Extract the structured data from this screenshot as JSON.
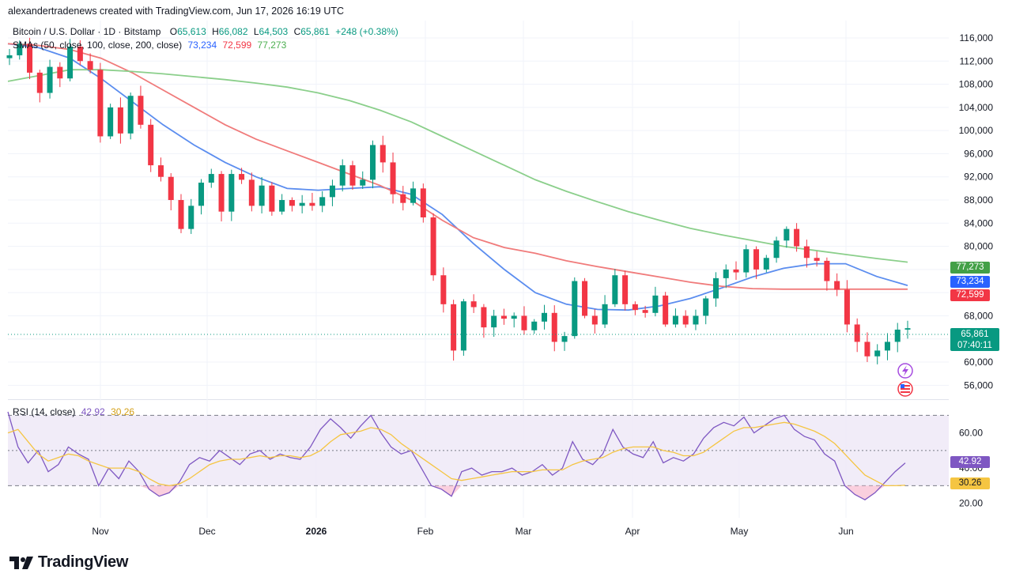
{
  "header": {
    "text": "alexandertradenews created with TradingView.com, Jun 17, 2026 16:19 UTC"
  },
  "legend": {
    "symbol": "Bitcoin / U.S. Dollar · 1D · Bitstamp",
    "ohlc": {
      "o_label": "O",
      "o": "65,613",
      "h_label": "H",
      "h": "66,082",
      "l_label": "L",
      "l": "64,503",
      "c_label": "C",
      "c": "65,861",
      "change": "+248 (+0.38%)"
    },
    "sma_label": "SMAs (50, close, 100, close, 200, close)",
    "sma50": "73,234",
    "sma100": "72,599",
    "sma200": "77,273",
    "rsi_label": "RSI (14, close)",
    "rsi": "42.92",
    "rsi_ma": "30.26"
  },
  "price_tags": {
    "sma200": "77,273",
    "sma50": "73,234",
    "sma100": "72,599",
    "close": "65,861",
    "countdown": "07:40:11",
    "rsi": "42.92",
    "rsi_ma": "30.26"
  },
  "footer": {
    "brand": "TradingView"
  },
  "colors": {
    "up": "#089981",
    "down": "#f23645",
    "sma50": "#5b8def",
    "sma100": "#f07b7b",
    "sma200": "#8bcf8b",
    "rsi": "#7e57c2",
    "rsi_ma": "#f5c542"
  },
  "chart_data": [
    {
      "type": "candlestick",
      "title": "Bitcoin / U.S. Dollar · 1D · Bitstamp",
      "x_ticks": [
        "Nov",
        "Dec",
        "2026",
        "Feb",
        "Mar",
        "Apr",
        "May",
        "Jun"
      ],
      "y_ticks": [
        56000,
        60000,
        64000,
        68000,
        72000,
        76000,
        80000,
        84000,
        88000,
        92000,
        96000,
        100000,
        104000,
        108000,
        112000,
        116000
      ],
      "y_tick_labels": [
        "56,000",
        "60,000",
        "",
        "68,000",
        "",
        "",
        "80,000",
        "84,000",
        "88,000",
        "92,000",
        "96,000",
        "100,000",
        "104,000",
        "108,000",
        "112,000",
        "116,000"
      ],
      "ylim": [
        54000,
        119000
      ],
      "grid": true,
      "close_path": [
        113000,
        115000,
        110000,
        106500,
        111000,
        109000,
        114500,
        112000,
        110500,
        99000,
        104000,
        99500,
        106000,
        101000,
        94000,
        92000,
        88000,
        83000,
        87000,
        91000,
        92500,
        86000,
        92500,
        91500,
        87000,
        90500,
        86000,
        88000,
        87000,
        87500,
        87000,
        88500,
        90500,
        94000,
        90500,
        91500,
        97500,
        94500,
        89000,
        87500,
        90000,
        85000,
        75000,
        70000,
        62000,
        70500,
        69500,
        66000,
        68000,
        67500,
        68000,
        65500,
        67000,
        68500,
        63500,
        64500,
        74000,
        68000,
        66500,
        70000,
        75000,
        70000,
        69000,
        68500,
        71500,
        66500,
        68000,
        66500,
        68000,
        71000,
        74500,
        76000,
        75500,
        79500,
        76000,
        78000,
        81000,
        83000,
        80000,
        78000,
        77500,
        74000,
        72500,
        66500,
        63500,
        61000,
        62000,
        63500,
        65613,
        65861
      ],
      "series": [
        {
          "name": "SMA 50",
          "values": [
            115000,
            114300,
            112500,
            109000,
            105000,
            101000,
            97500,
            94500,
            92000,
            90000,
            89700,
            90000,
            90300,
            89000,
            85500,
            80500,
            76000,
            72000,
            70000,
            69100,
            69000,
            69700,
            71000,
            72800,
            74700,
            76200,
            77000,
            77000,
            74800,
            73234
          ]
        },
        {
          "name": "SMA 100",
          "values": [
            115000,
            114700,
            114000,
            112500,
            110000,
            107000,
            104000,
            101000,
            98500,
            96500,
            94500,
            92500,
            90500,
            88000,
            84500,
            81500,
            79800,
            78800,
            77500,
            76500,
            75600,
            74700,
            73800,
            73100,
            72700,
            72600,
            72600,
            72600,
            72600,
            72599
          ]
        },
        {
          "name": "SMA 200",
          "values": [
            108500,
            109500,
            110500,
            110500,
            110200,
            109800,
            109300,
            108800,
            108200,
            107500,
            106500,
            105200,
            103500,
            101500,
            99000,
            96500,
            94000,
            91500,
            89500,
            87700,
            86000,
            84500,
            83100,
            82000,
            81000,
            80000,
            79300,
            78600,
            77900,
            77273
          ]
        }
      ]
    },
    {
      "type": "line",
      "title": "RSI (14, close)",
      "y_ticks": [
        20,
        40,
        60
      ],
      "y_tick_labels": [
        "20.00",
        "40.00",
        "60.00"
      ],
      "bands": [
        30,
        50,
        70
      ],
      "ylim": [
        14,
        76
      ],
      "series": [
        {
          "name": "RSI",
          "values": [
            72,
            52,
            43,
            50,
            38,
            42,
            52,
            48,
            45,
            30,
            40,
            34,
            44,
            38,
            28,
            24,
            26,
            32,
            42,
            46,
            44,
            50,
            46,
            42,
            48,
            50,
            45,
            48,
            46,
            45,
            52,
            62,
            68,
            63,
            57,
            64,
            70,
            60,
            52,
            48,
            50,
            40,
            30,
            28,
            24,
            38,
            40,
            36,
            38,
            38,
            40,
            36,
            38,
            42,
            36,
            40,
            55,
            45,
            42,
            48,
            62,
            52,
            48,
            46,
            55,
            43,
            46,
            44,
            48,
            57,
            63,
            66,
            64,
            69,
            60,
            64,
            68,
            70,
            62,
            58,
            56,
            48,
            44,
            30,
            25,
            22,
            26,
            32,
            38,
            42.92
          ]
        },
        {
          "name": "RSI-based MA",
          "values": [
            60,
            62,
            55,
            48,
            44,
            46,
            48,
            47,
            44,
            42,
            40,
            40,
            40,
            38,
            34,
            31,
            30,
            31,
            34,
            38,
            42,
            44,
            45,
            45,
            46,
            47,
            46,
            47,
            47,
            46,
            47,
            50,
            55,
            59,
            60,
            61,
            63,
            62,
            59,
            54,
            50,
            46,
            42,
            38,
            34,
            33,
            34,
            35,
            36,
            37,
            38,
            38,
            38,
            39,
            39,
            39,
            42,
            44,
            45,
            46,
            49,
            51,
            52,
            52,
            52,
            50,
            49,
            47,
            47,
            49,
            53,
            57,
            61,
            63,
            63,
            64,
            65,
            66,
            65,
            63,
            61,
            58,
            54,
            48,
            42,
            36,
            33,
            30,
            30,
            30.26
          ]
        }
      ]
    }
  ]
}
